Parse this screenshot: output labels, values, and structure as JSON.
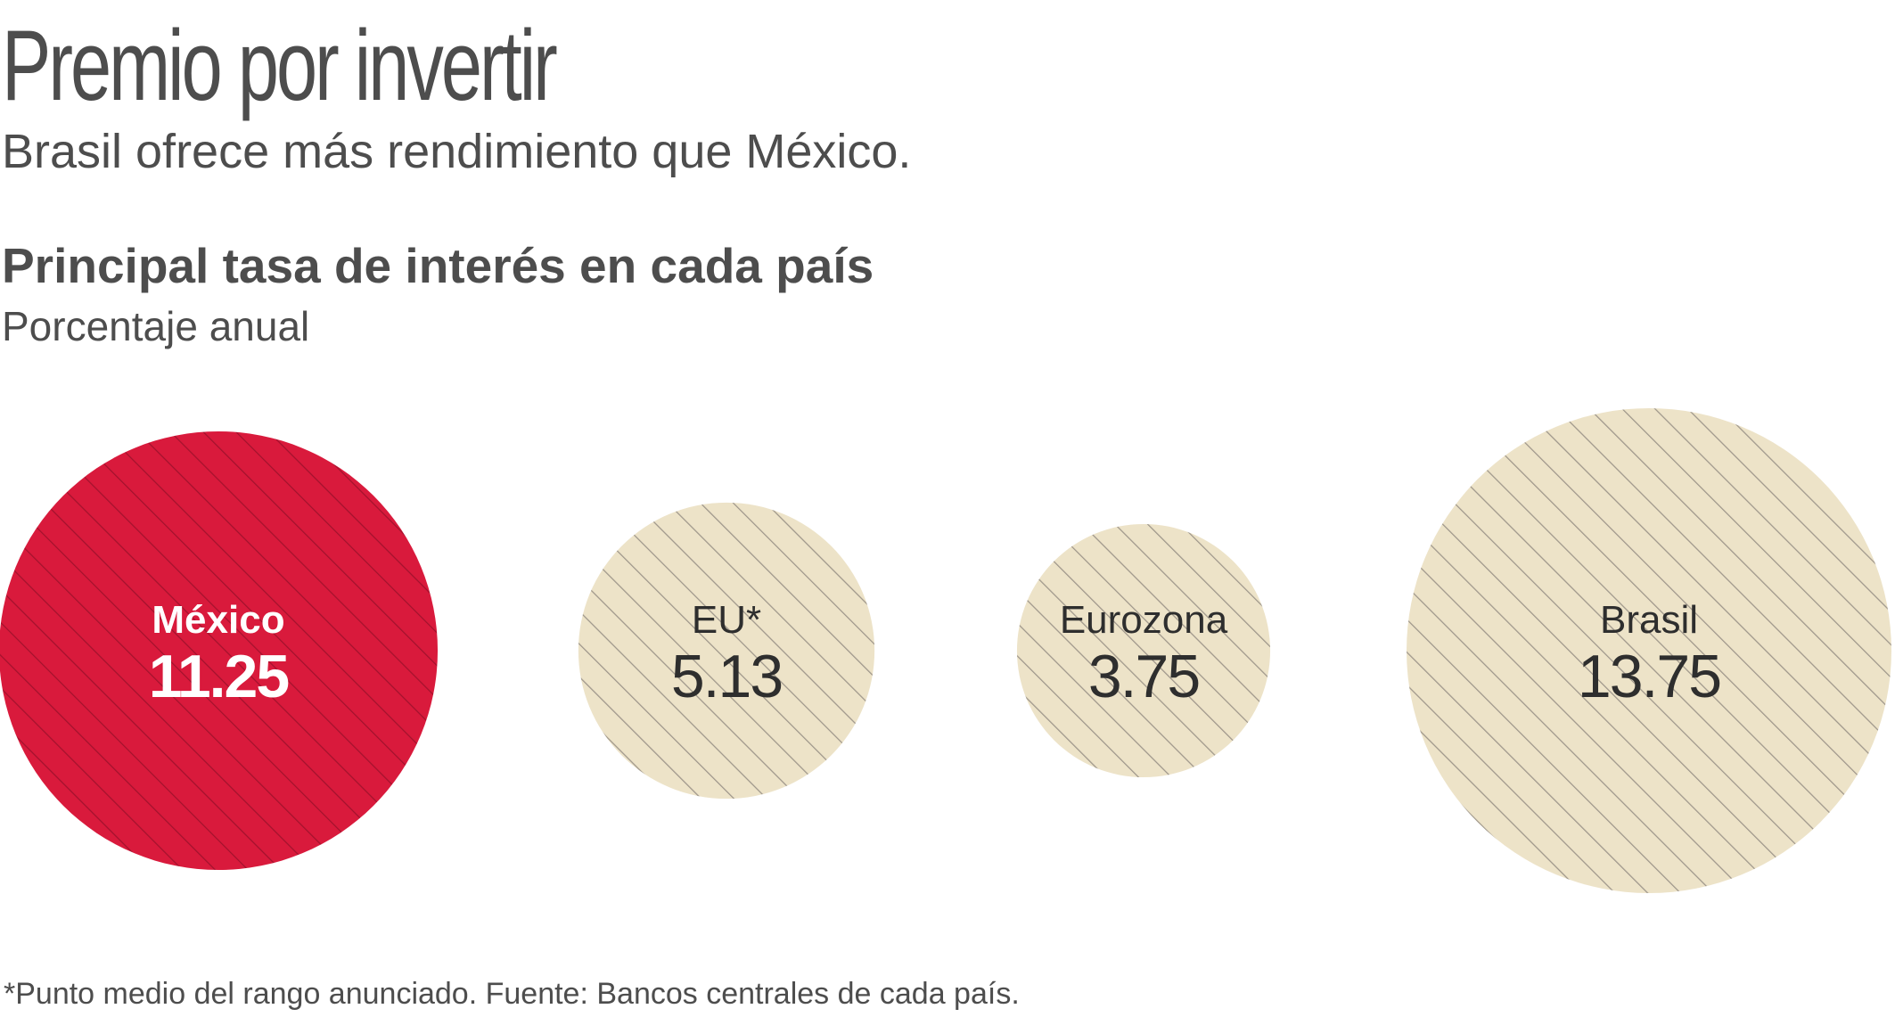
{
  "header": {
    "title": "Premio por invertir",
    "subtitle": "Brasil ofrece más rendimiento que México."
  },
  "chart_data": {
    "type": "bubble",
    "title": "Principal tasa de interés en cada país",
    "subtitle": "Porcentaje anual",
    "unit": "%",
    "series": [
      {
        "name": "México",
        "value": 11.25,
        "value_label": "11.25",
        "highlight": true
      },
      {
        "name": "EU*",
        "value": 5.13,
        "value_label": "5.13",
        "highlight": false
      },
      {
        "name": "Eurozona",
        "value": 3.75,
        "value_label": "3.75",
        "highlight": false
      },
      {
        "name": "Brasil",
        "value": 13.75,
        "value_label": "13.75",
        "highlight": false
      }
    ],
    "colors": {
      "highlight_fill": "#d91a3c",
      "default_fill": "#ede3c8",
      "hatch_on_highlight": "#a3122d",
      "hatch_on_default": "#9e968a",
      "highlight_text": "#ffffff",
      "default_text": "#2e2e2e"
    }
  },
  "footer": {
    "footnote": "*Punto medio del rango anunciado. Fuente: Bancos centrales de cada país."
  }
}
